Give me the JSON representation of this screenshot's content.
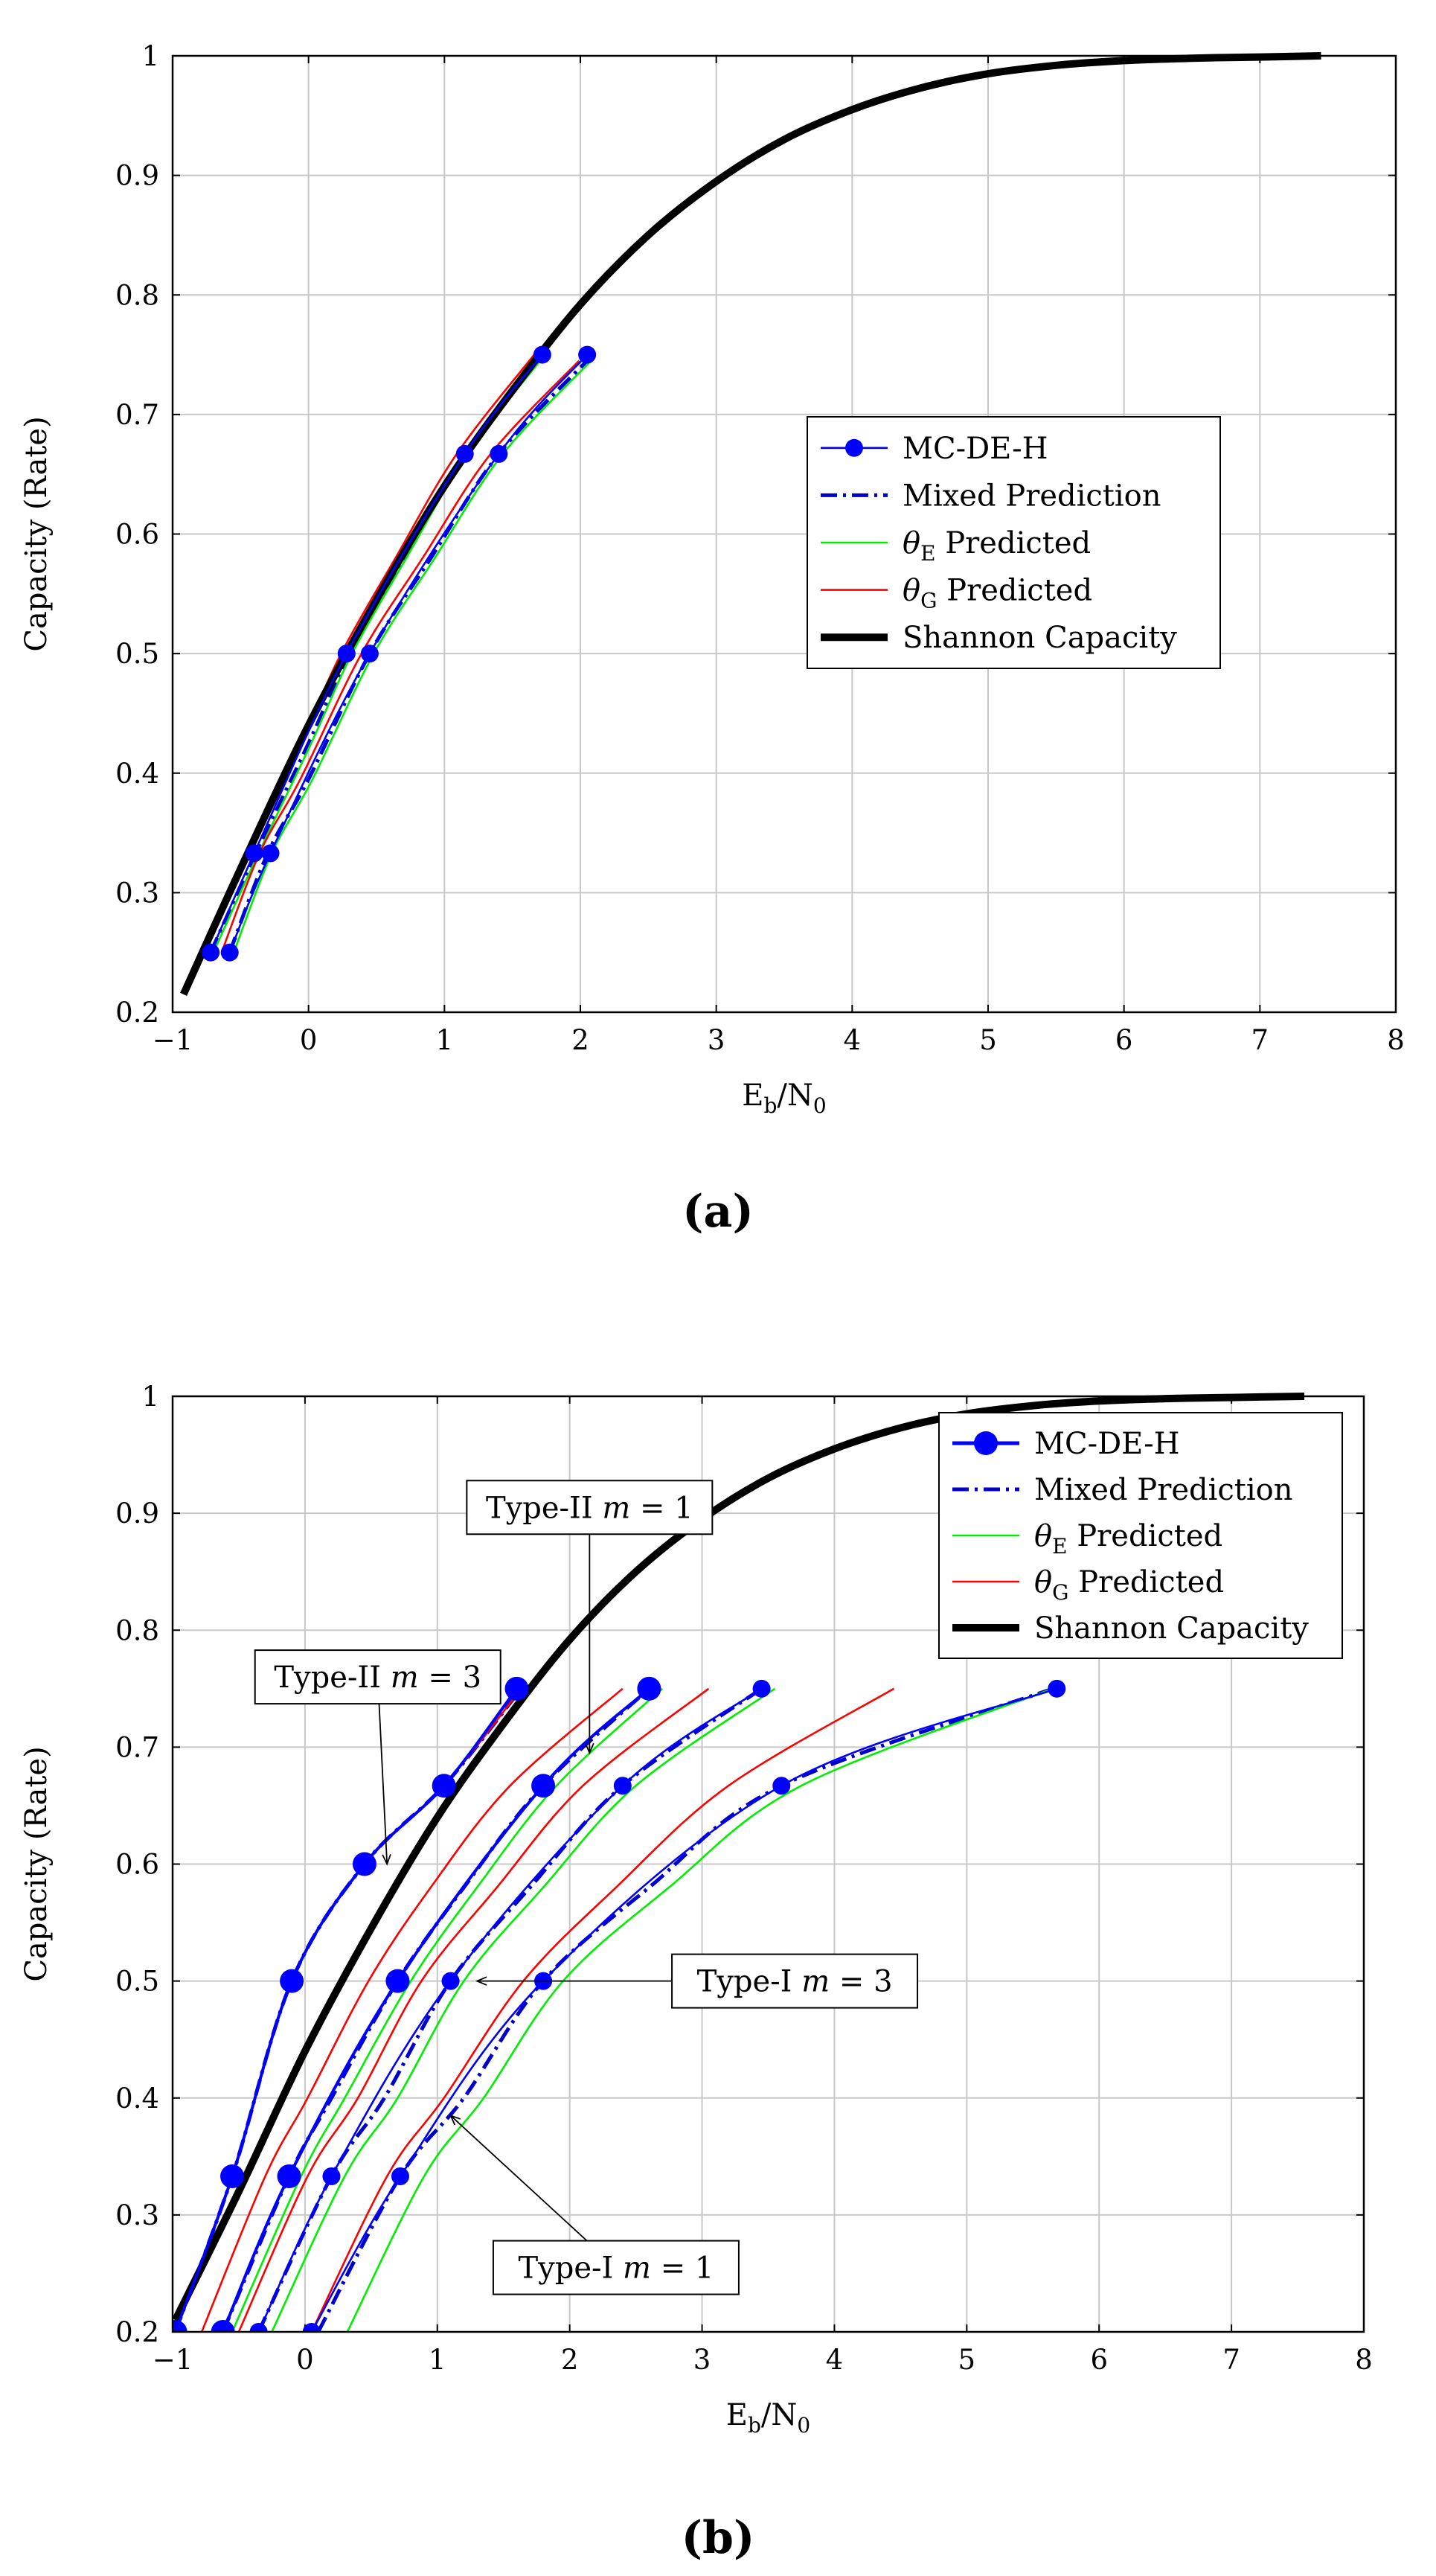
{
  "figure": {
    "caption_a": "(a)",
    "caption_b": "(b)",
    "colors": {
      "mc": "#0000ff",
      "mixed": "#0000cc",
      "thetaE": "#00ee00",
      "thetaG": "#ff0000",
      "shannon": "#000000",
      "grid": "#c8c8c8"
    }
  },
  "chart_data": [
    {
      "type": "line",
      "id": "a",
      "title": "",
      "xlabel": {
        "main": "E",
        "sub1": "b",
        "mid": "/N",
        "sub2": "0"
      },
      "ylabel": "Capacity (Rate)",
      "xlim": [
        -1,
        8
      ],
      "ylim": [
        0.2,
        1
      ],
      "xticks": [
        -1,
        0,
        1,
        2,
        3,
        4,
        5,
        6,
        7,
        8
      ],
      "xtick_labels": [
        "−1",
        "0",
        "1",
        "2",
        "3",
        "4",
        "5",
        "6",
        "7",
        "8"
      ],
      "yticks": [
        0.2,
        0.3,
        0.4,
        0.5,
        0.6,
        0.7,
        0.8,
        0.9,
        1
      ],
      "ytick_labels": [
        "0.2",
        "0.3",
        "0.4",
        "0.5",
        "0.6",
        "0.7",
        "0.8",
        "0.9",
        "1"
      ],
      "grid": true,
      "legend": {
        "position": "center-right",
        "entries": [
          {
            "key": "mc",
            "label": "MC-DE-H"
          },
          {
            "key": "mixed",
            "label": "Mixed Prediction"
          },
          {
            "key": "thetaE",
            "label": "θ",
            "sub": "E",
            "suffix": " Predicted"
          },
          {
            "key": "thetaG",
            "label": "θ",
            "sub": "G",
            "suffix": " Predicted"
          },
          {
            "key": "shannon",
            "label": "Shannon Capacity"
          }
        ]
      },
      "series": [
        {
          "name": "Shannon Capacity",
          "style": "shannon",
          "x": [
            -0.92,
            -0.5,
            0,
            0.5,
            1,
            1.5,
            2,
            2.5,
            3,
            3.5,
            4,
            4.5,
            5,
            5.5,
            6,
            6.5,
            7,
            7.45
          ],
          "y": [
            0.215,
            0.32,
            0.44,
            0.545,
            0.64,
            0.72,
            0.792,
            0.85,
            0.895,
            0.93,
            0.955,
            0.973,
            0.985,
            0.992,
            0.996,
            0.998,
            0.999,
            1.0
          ]
        },
        {
          "name": "Mixed Prediction",
          "style": "mixed",
          "x": [
            -0.72,
            -0.4,
            0,
            0.3,
            0.7,
            1.15,
            1.72
          ],
          "y": [
            0.25,
            0.33,
            0.425,
            0.5,
            0.58,
            0.667,
            0.75
          ]
        },
        {
          "name": "Mixed Prediction",
          "style": "mixed",
          "x": [
            -0.58,
            -0.3,
            0,
            0.45,
            0.9,
            1.4,
            2.05
          ],
          "y": [
            0.25,
            0.333,
            0.395,
            0.5,
            0.58,
            0.667,
            0.745
          ]
        },
        {
          "name": "θE Predicted",
          "style": "thetaE",
          "x": [
            -0.7,
            -0.38,
            0.02,
            0.32,
            0.72,
            1.17,
            1.74
          ],
          "y": [
            0.25,
            0.33,
            0.425,
            0.5,
            0.58,
            0.667,
            0.75
          ]
        },
        {
          "name": "θE Predicted",
          "style": "thetaE",
          "x": [
            -0.55,
            -0.27,
            0.03,
            0.48,
            0.93,
            1.43,
            2.08
          ],
          "y": [
            0.25,
            0.333,
            0.395,
            0.5,
            0.58,
            0.667,
            0.745
          ]
        },
        {
          "name": "θG Predicted",
          "style": "thetaG",
          "x": [
            -0.78,
            -0.46,
            -0.06,
            0.24,
            0.64,
            1.09,
            1.66
          ],
          "y": [
            0.25,
            0.33,
            0.425,
            0.5,
            0.58,
            0.667,
            0.75
          ]
        },
        {
          "name": "θG Predicted",
          "style": "thetaG",
          "x": [
            -0.64,
            -0.36,
            -0.06,
            0.39,
            0.84,
            1.34,
            1.99
          ],
          "y": [
            0.25,
            0.333,
            0.395,
            0.5,
            0.58,
            0.667,
            0.745
          ]
        },
        {
          "name": "MC-DE-H",
          "style": "mc",
          "x": [
            -0.72,
            -0.4,
            0.28,
            1.15,
            1.72
          ],
          "y": [
            0.25,
            0.333,
            0.5,
            0.667,
            0.75
          ]
        },
        {
          "name": "MC-DE-H",
          "style": "mc",
          "x": [
            -0.58,
            -0.28,
            0.45,
            1.4,
            2.05
          ],
          "y": [
            0.25,
            0.333,
            0.5,
            0.667,
            0.75
          ]
        }
      ],
      "annotations": []
    },
    {
      "type": "line",
      "id": "b",
      "title": "",
      "xlabel": {
        "main": "E",
        "sub1": "b",
        "mid": "/N",
        "sub2": "0"
      },
      "ylabel": "Capacity (Rate)",
      "xlim": [
        -1,
        8
      ],
      "ylim": [
        0.2,
        1
      ],
      "xticks": [
        -1,
        0,
        1,
        2,
        3,
        4,
        5,
        6,
        7,
        8
      ],
      "xtick_labels": [
        "−1",
        "0",
        "1",
        "2",
        "3",
        "4",
        "5",
        "6",
        "7",
        "8"
      ],
      "yticks": [
        0.2,
        0.3,
        0.4,
        0.5,
        0.6,
        0.7,
        0.8,
        0.9,
        1
      ],
      "ytick_labels": [
        "0.2",
        "0.3",
        "0.4",
        "0.5",
        "0.6",
        "0.7",
        "0.8",
        "0.9",
        "1"
      ],
      "grid": true,
      "legend": {
        "position": "top-right",
        "entries": [
          {
            "key": "mc",
            "label": "MC-DE-H"
          },
          {
            "key": "mixed",
            "label": "Mixed Prediction"
          },
          {
            "key": "thetaE",
            "label": "θ",
            "sub": "E",
            "suffix": " Predicted"
          },
          {
            "key": "thetaG",
            "label": "θ",
            "sub": "G",
            "suffix": " Predicted"
          },
          {
            "key": "shannon",
            "label": "Shannon Capacity"
          }
        ]
      },
      "series": [
        {
          "name": "Shannon Capacity",
          "style": "shannon",
          "x": [
            -0.98,
            -0.5,
            0,
            0.5,
            1,
            1.5,
            2,
            2.5,
            3,
            3.5,
            4,
            4.5,
            5,
            5.5,
            6,
            6.5,
            7,
            7.55
          ],
          "y": [
            0.21,
            0.32,
            0.44,
            0.545,
            0.64,
            0.72,
            0.792,
            0.85,
            0.895,
            0.93,
            0.955,
            0.973,
            0.985,
            0.992,
            0.996,
            0.998,
            0.999,
            1.0
          ]
        },
        {
          "name": "Mixed Prediction",
          "style": "mixed",
          "x": [
            -0.98,
            -0.55,
            -0.1,
            0.45,
            1.05,
            1.6
          ],
          "y": [
            0.2,
            0.333,
            0.5,
            0.6,
            0.667,
            0.745
          ]
        },
        {
          "name": "Mixed Prediction",
          "style": "mixed",
          "x": [
            -0.62,
            -0.12,
            0.2,
            0.7,
            1.2,
            1.8,
            2.6
          ],
          "y": [
            0.2,
            0.333,
            0.4,
            0.5,
            0.58,
            0.667,
            0.75
          ]
        },
        {
          "name": "Mixed Prediction",
          "style": "mixed",
          "x": [
            -0.35,
            0.2,
            0.6,
            1.1,
            1.7,
            2.4,
            3.45
          ],
          "y": [
            0.2,
            0.333,
            0.4,
            0.5,
            0.58,
            0.667,
            0.75
          ]
        },
        {
          "name": "Mixed Prediction",
          "style": "mixed",
          "x": [
            0.1,
            0.72,
            1.2,
            1.8,
            2.6,
            3.6,
            5.65
          ],
          "y": [
            0.2,
            0.333,
            0.4,
            0.5,
            0.58,
            0.667,
            0.75
          ]
        },
        {
          "name": "θE Predicted",
          "style": "thetaE",
          "x": [
            -0.55,
            -0.03,
            0.3,
            0.8,
            1.3,
            1.9,
            2.7
          ],
          "y": [
            0.2,
            0.333,
            0.4,
            0.5,
            0.58,
            0.667,
            0.75
          ]
        },
        {
          "name": "θE Predicted",
          "style": "thetaE",
          "x": [
            -0.25,
            0.3,
            0.7,
            1.2,
            1.8,
            2.5,
            3.55
          ],
          "y": [
            0.2,
            0.333,
            0.4,
            0.5,
            0.58,
            0.667,
            0.75
          ]
        },
        {
          "name": "θE Predicted",
          "style": "thetaE",
          "x": [
            0.32,
            0.9,
            1.35,
            1.95,
            2.75,
            3.75,
            5.65
          ],
          "y": [
            0.2,
            0.333,
            0.4,
            0.5,
            0.58,
            0.667,
            0.75
          ]
        },
        {
          "name": "θG Predicted",
          "style": "thetaG",
          "x": [
            -0.98,
            -0.55,
            -0.1,
            0.45,
            1.05,
            1.6
          ],
          "y": [
            0.2,
            0.333,
            0.5,
            0.6,
            0.667,
            0.745
          ]
        },
        {
          "name": "θG Predicted",
          "style": "thetaG",
          "x": [
            -0.78,
            -0.3,
            0.02,
            0.48,
            0.95,
            1.55,
            2.4
          ],
          "y": [
            0.2,
            0.333,
            0.4,
            0.5,
            0.58,
            0.667,
            0.75
          ]
        },
        {
          "name": "θG Predicted",
          "style": "thetaG",
          "x": [
            -0.5,
            0.02,
            0.4,
            0.88,
            1.45,
            2.1,
            3.05
          ],
          "y": [
            0.2,
            0.333,
            0.4,
            0.5,
            0.58,
            0.667,
            0.75
          ]
        },
        {
          "name": "θG Predicted",
          "style": "thetaG",
          "x": [
            0.05,
            0.62,
            1.05,
            1.65,
            2.35,
            3.2,
            4.45
          ],
          "y": [
            0.2,
            0.333,
            0.4,
            0.5,
            0.58,
            0.667,
            0.75
          ]
        },
        {
          "name": "MC-DE-H",
          "style": "mc-large",
          "x": [
            -0.98,
            -0.55,
            -0.1,
            0.45,
            1.05,
            1.6
          ],
          "y": [
            0.2,
            0.333,
            0.5,
            0.6,
            0.667,
            0.75
          ]
        },
        {
          "name": "MC-DE-H",
          "style": "mc-large",
          "x": [
            -0.62,
            -0.12,
            0.7,
            1.8,
            2.6
          ],
          "y": [
            0.2,
            0.333,
            0.5,
            0.667,
            0.75
          ]
        },
        {
          "name": "MC-DE-H",
          "style": "mc",
          "x": [
            -0.35,
            0.2,
            1.1,
            2.4,
            3.45
          ],
          "y": [
            0.2,
            0.333,
            0.5,
            0.667,
            0.75
          ]
        },
        {
          "name": "MC-DE-H",
          "style": "mc",
          "x": [
            0.05,
            0.72,
            1.8,
            3.6,
            5.68
          ],
          "y": [
            0.2,
            0.333,
            0.5,
            0.667,
            0.75
          ]
        }
      ],
      "annotations": [
        {
          "text": "Type-II ",
          "math": "m",
          "eq": " = 1",
          "box": [
            2.15,
            0.905
          ],
          "target": [
            2.15,
            0.695
          ]
        },
        {
          "text": "Type-II ",
          "math": "m",
          "eq": " = 3",
          "box": [
            0.55,
            0.76
          ],
          "target": [
            0.62,
            0.6
          ]
        },
        {
          "text": "Type-I ",
          "math": "m",
          "eq": " = 3",
          "box": [
            3.7,
            0.5
          ],
          "target": [
            1.3,
            0.5
          ]
        },
        {
          "text": "Type-I ",
          "math": "m",
          "eq": " = 1",
          "box": [
            2.35,
            0.255
          ],
          "target": [
            1.1,
            0.385
          ]
        }
      ]
    }
  ]
}
